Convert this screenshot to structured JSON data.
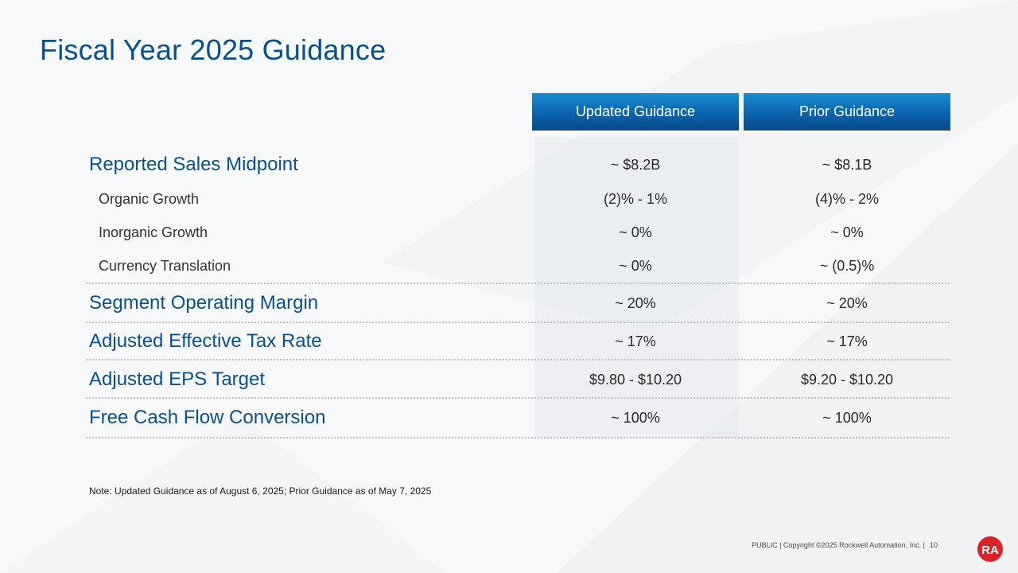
{
  "slide": {
    "title": "Fiscal Year 2025 Guidance",
    "columns": {
      "updated": "Updated Guidance",
      "prior": "Prior Guidance"
    },
    "rows": [
      {
        "label": "Reported Sales Midpoint",
        "updated": "~ $8.2B",
        "prior": "~ $8.1B",
        "level": "major"
      },
      {
        "label": "Organic Growth",
        "updated": "(2)% - 1%",
        "prior": "(4)% - 2%",
        "level": "minor"
      },
      {
        "label": "Inorganic Growth",
        "updated": "~ 0%",
        "prior": "~ 0%",
        "level": "minor"
      },
      {
        "label": "Currency Translation",
        "updated": "~ 0%",
        "prior": "~ (0.5)%",
        "level": "minor"
      },
      {
        "label": "Segment Operating Margin",
        "updated": "~ 20%",
        "prior": "~ 20%",
        "level": "major"
      },
      {
        "label": "Adjusted Effective Tax Rate",
        "updated": "~ 17%",
        "prior": "~ 17%",
        "level": "major"
      },
      {
        "label": "Adjusted EPS Target",
        "updated": "$9.80 - $10.20",
        "prior": "$9.20 - $10.20",
        "level": "major"
      },
      {
        "label": "Free Cash Flow Conversion",
        "updated": "~ 100%",
        "prior": "~ 100%",
        "level": "major"
      }
    ],
    "note": "Note: Updated Guidance as of August 6, 2025; Prior Guidance as of May 7, 2025",
    "footer": "PUBLIC | Copyright ©2025 Rockwell Automation, Inc. |",
    "page_number": "10",
    "logo_text": "RA",
    "colors": {
      "title": "#0a4f8f",
      "header_bg": "#0b63ad",
      "logo": "#d9222a"
    }
  }
}
